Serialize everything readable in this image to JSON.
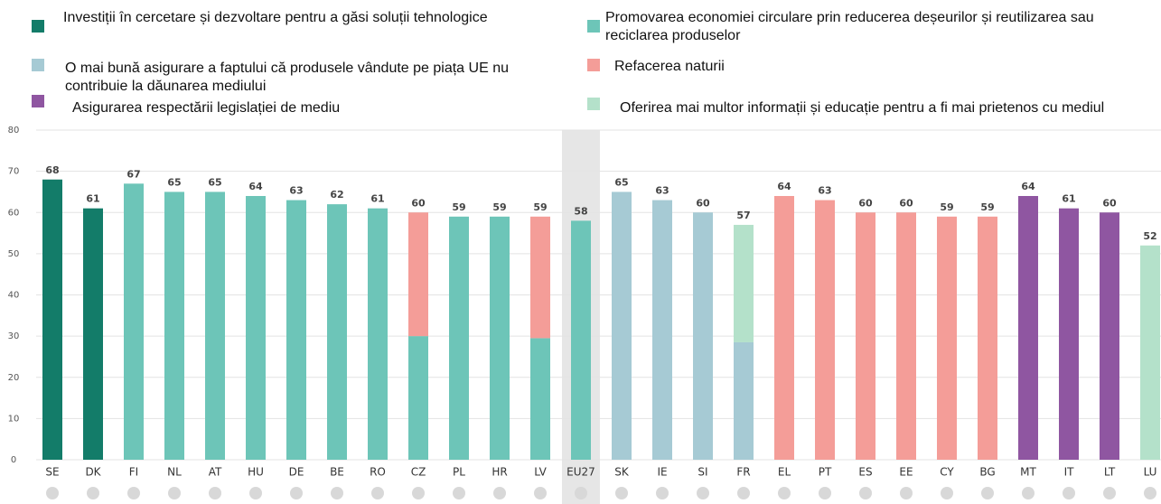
{
  "chart_data": {
    "type": "bar",
    "categories": [
      "SE",
      "DK",
      "FI",
      "NL",
      "AT",
      "HU",
      "DE",
      "BE",
      "RO",
      "CZ",
      "PL",
      "HR",
      "LV",
      "EU27",
      "SK",
      "IE",
      "SI",
      "FR",
      "EL",
      "PT",
      "ES",
      "EE",
      "CY",
      "BG",
      "MT",
      "IT",
      "LT",
      "LU"
    ],
    "totals": [
      68,
      61,
      67,
      65,
      65,
      64,
      63,
      62,
      61,
      60,
      59,
      59,
      59,
      58,
      65,
      63,
      60,
      57,
      64,
      63,
      60,
      60,
      59,
      59,
      64,
      61,
      60,
      52
    ],
    "series": [
      {
        "name": "Investiții în cercetare și dezvoltare pentru a găsi soluții tehnologice",
        "color": "#137c69",
        "values": [
          68,
          61,
          null,
          null,
          null,
          null,
          null,
          null,
          null,
          null,
          null,
          null,
          null,
          null,
          null,
          null,
          null,
          null,
          null,
          null,
          null,
          null,
          null,
          null,
          null,
          null,
          null,
          null
        ]
      },
      {
        "name": "Promovarea economiei circulare prin reducerea deșeurilor și reutilizarea sau reciclarea produselor",
        "color": "#6dc5b8",
        "values": [
          null,
          null,
          67,
          65,
          65,
          64,
          63,
          62,
          61,
          30,
          59,
          59,
          29.5,
          58,
          null,
          null,
          null,
          null,
          null,
          null,
          null,
          null,
          null,
          null,
          null,
          null,
          null,
          null
        ]
      },
      {
        "name": "O mai bună asigurare a faptului că produsele vândute pe piața UE nu contribuie la dăunarea mediului",
        "color": "#a6cad4",
        "values": [
          null,
          null,
          null,
          null,
          null,
          null,
          null,
          null,
          null,
          null,
          null,
          null,
          null,
          null,
          65,
          63,
          60,
          28.5,
          null,
          null,
          null,
          null,
          null,
          null,
          null,
          null,
          null,
          null
        ]
      },
      {
        "name": "Refacerea naturii",
        "color": "#f49d98",
        "values": [
          null,
          null,
          null,
          null,
          null,
          null,
          null,
          null,
          null,
          30,
          null,
          null,
          29.5,
          null,
          null,
          null,
          null,
          null,
          64,
          63,
          60,
          60,
          59,
          59,
          null,
          null,
          null,
          null
        ]
      },
      {
        "name": "Asigurarea respectării legislației de mediu",
        "color": "#8f56a1",
        "values": [
          null,
          null,
          null,
          null,
          null,
          null,
          null,
          null,
          null,
          null,
          null,
          null,
          null,
          null,
          null,
          null,
          null,
          null,
          null,
          null,
          null,
          null,
          null,
          null,
          64,
          61,
          60,
          null
        ]
      },
      {
        "name": "Oferirea mai multor informații și educație pentru a fi mai prietenos cu mediul",
        "color": "#b4e1ca",
        "values": [
          null,
          null,
          null,
          null,
          null,
          null,
          null,
          null,
          null,
          null,
          null,
          null,
          null,
          null,
          null,
          null,
          null,
          28.5,
          null,
          null,
          null,
          null,
          null,
          null,
          null,
          null,
          null,
          52
        ]
      }
    ],
    "highlight": "EU27",
    "ylim": [
      0,
      80
    ],
    "yticks": [
      0,
      10,
      20,
      30,
      40,
      50,
      60,
      70,
      80
    ],
    "grid": true
  }
}
